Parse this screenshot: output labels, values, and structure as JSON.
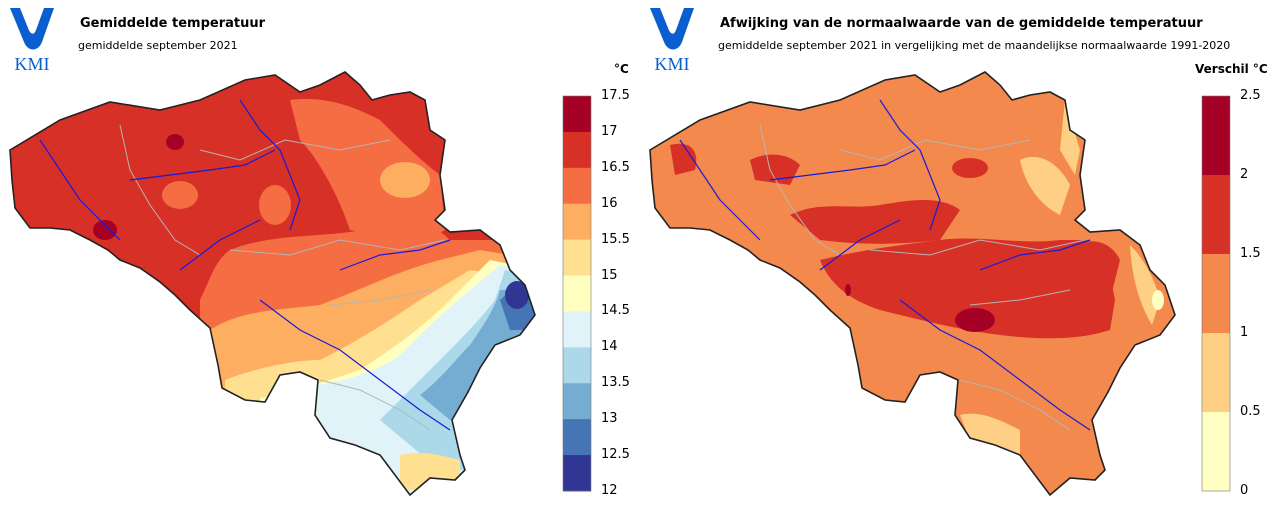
{
  "logo": {
    "text": "KMI",
    "color": "#0a5fd0"
  },
  "left_map": {
    "title": "Gemiddelde temperatuur",
    "subtitle": "gemiddelde september 2021",
    "unit": "°C",
    "scale": [
      {
        "label": "17.5"
      },
      {
        "label": "17"
      },
      {
        "label": "16.5"
      },
      {
        "label": "16"
      },
      {
        "label": "15.5"
      },
      {
        "label": "15"
      },
      {
        "label": "14.5"
      },
      {
        "label": "14"
      },
      {
        "label": "13.5"
      },
      {
        "label": "13"
      },
      {
        "label": "12.5"
      },
      {
        "label": "12"
      }
    ],
    "colors": [
      "#a50026",
      "#d73027",
      "#f46d43",
      "#fdae61",
      "#fee090",
      "#ffffbf",
      "#e0f3f8",
      "#abd9e9",
      "#74add1",
      "#4575b4",
      "#313695"
    ]
  },
  "right_map": {
    "title": "Afwijking van de normaalwaarde van de gemiddelde temperatuur",
    "subtitle": "gemiddelde september 2021 in vergelijking met de maandelijkse normaalwaarde 1991-2020",
    "unit": "Verschil °C",
    "scale": [
      {
        "label": "2.5"
      },
      {
        "label": "2"
      },
      {
        "label": "1.5"
      },
      {
        "label": "1"
      },
      {
        "label": "0.5"
      },
      {
        "label": "0"
      }
    ],
    "colors": [
      "#a50026",
      "#d73027",
      "#f4894e",
      "#fdd085",
      "#ffffc4"
    ]
  }
}
